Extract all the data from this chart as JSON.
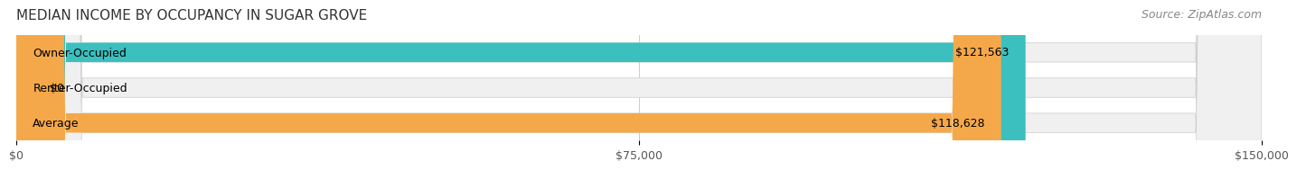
{
  "title": "MEDIAN INCOME BY OCCUPANCY IN SUGAR GROVE",
  "source": "Source: ZipAtlas.com",
  "categories": [
    "Owner-Occupied",
    "Renter-Occupied",
    "Average"
  ],
  "values": [
    121563,
    0,
    118628
  ],
  "bar_colors": [
    "#3bbfbf",
    "#c8a8d8",
    "#f5a84a"
  ],
  "bar_labels": [
    "$121,563",
    "$0",
    "$118,628"
  ],
  "xlim": [
    0,
    150000
  ],
  "xticks": [
    0,
    75000,
    150000
  ],
  "xtick_labels": [
    "$0",
    "$75,000",
    "$150,000"
  ],
  "background_color": "#ffffff",
  "bar_bg_color": "#f0f0f0",
  "title_fontsize": 11,
  "source_fontsize": 9,
  "label_fontsize": 9,
  "tick_fontsize": 9
}
